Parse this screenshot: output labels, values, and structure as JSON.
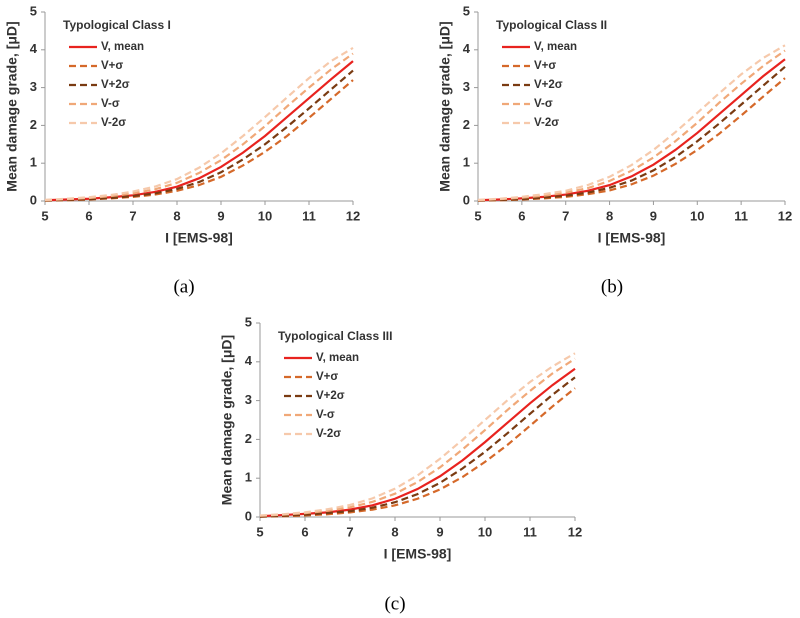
{
  "chart_data": [
    {
      "type": "line",
      "title": "Typological Class I",
      "caption": "(a)",
      "xlabel": "I [EMS-98]",
      "ylabel": "Mean damage grade, [μD]",
      "x": [
        5,
        5.5,
        6,
        6.5,
        7,
        7.5,
        8,
        8.5,
        9,
        9.5,
        10,
        10.5,
        11,
        11.5,
        12
      ],
      "xlim": [
        5,
        12
      ],
      "ylim": [
        0,
        5
      ],
      "xticks": [
        5,
        6,
        7,
        8,
        9,
        10,
        11,
        12
      ],
      "yticks": [
        0,
        1,
        2,
        3,
        4,
        5
      ],
      "series": [
        {
          "name": "V, mean",
          "color": "#e8231f",
          "dash": false,
          "values": [
            0.02,
            0.04,
            0.06,
            0.1,
            0.15,
            0.24,
            0.38,
            0.6,
            0.9,
            1.28,
            1.72,
            2.22,
            2.72,
            3.22,
            3.7
          ]
        },
        {
          "name": "V+σ",
          "color": "#d5692a",
          "dash": true,
          "values": [
            0.01,
            0.02,
            0.04,
            0.07,
            0.11,
            0.17,
            0.27,
            0.42,
            0.64,
            0.94,
            1.3,
            1.72,
            2.2,
            2.7,
            3.2
          ]
        },
        {
          "name": "V+2σ",
          "color": "#7a3b12",
          "dash": true,
          "values": [
            0.01,
            0.03,
            0.05,
            0.08,
            0.13,
            0.2,
            0.32,
            0.5,
            0.76,
            1.1,
            1.5,
            1.96,
            2.45,
            2.95,
            3.45
          ]
        },
        {
          "name": "V-σ",
          "color": "#f0a878",
          "dash": true,
          "values": [
            0.02,
            0.05,
            0.08,
            0.13,
            0.2,
            0.31,
            0.48,
            0.74,
            1.08,
            1.5,
            1.98,
            2.5,
            3.0,
            3.48,
            3.9
          ]
        },
        {
          "name": "V-2σ",
          "color": "#f6c9ab",
          "dash": true,
          "values": [
            0.03,
            0.06,
            0.1,
            0.16,
            0.25,
            0.38,
            0.58,
            0.88,
            1.26,
            1.72,
            2.22,
            2.74,
            3.25,
            3.7,
            4.05
          ]
        }
      ]
    },
    {
      "type": "line",
      "title": "Typological Class II",
      "caption": "(b)",
      "xlabel": "I [EMS-98]",
      "ylabel": "Mean damage grade, [μD]",
      "x": [
        5,
        5.5,
        6,
        6.5,
        7,
        7.5,
        8,
        8.5,
        9,
        9.5,
        10,
        10.5,
        11,
        11.5,
        12
      ],
      "xlim": [
        5,
        12
      ],
      "ylim": [
        0,
        5
      ],
      "xticks": [
        5,
        6,
        7,
        8,
        9,
        10,
        11,
        12
      ],
      "yticks": [
        0,
        1,
        2,
        3,
        4,
        5
      ],
      "series": [
        {
          "name": "V, mean",
          "color": "#e8231f",
          "dash": false,
          "values": [
            0.02,
            0.04,
            0.07,
            0.11,
            0.17,
            0.27,
            0.42,
            0.65,
            0.96,
            1.35,
            1.8,
            2.3,
            2.8,
            3.3,
            3.75
          ]
        },
        {
          "name": "V+σ",
          "color": "#d5692a",
          "dash": true,
          "values": [
            0.01,
            0.02,
            0.04,
            0.07,
            0.11,
            0.18,
            0.28,
            0.44,
            0.67,
            0.98,
            1.35,
            1.78,
            2.26,
            2.76,
            3.25
          ]
        },
        {
          "name": "V+2σ",
          "color": "#7a3b12",
          "dash": true,
          "values": [
            0.01,
            0.03,
            0.05,
            0.09,
            0.14,
            0.22,
            0.35,
            0.54,
            0.81,
            1.16,
            1.58,
            2.05,
            2.55,
            3.05,
            3.55
          ]
        },
        {
          "name": "V-σ",
          "color": "#f0a878",
          "dash": true,
          "values": [
            0.02,
            0.05,
            0.09,
            0.14,
            0.22,
            0.34,
            0.53,
            0.8,
            1.15,
            1.58,
            2.07,
            2.6,
            3.1,
            3.57,
            3.98
          ]
        },
        {
          "name": "V-2σ",
          "color": "#f6c9ab",
          "dash": true,
          "values": [
            0.03,
            0.06,
            0.11,
            0.18,
            0.27,
            0.42,
            0.64,
            0.95,
            1.35,
            1.82,
            2.33,
            2.85,
            3.35,
            3.78,
            4.12
          ]
        }
      ]
    },
    {
      "type": "line",
      "title": "Typological Class III",
      "caption": "(c)",
      "xlabel": "I [EMS-98]",
      "ylabel": "Mean damage grade, [μD]",
      "x": [
        5,
        5.5,
        6,
        6.5,
        7,
        7.5,
        8,
        8.5,
        9,
        9.5,
        10,
        10.5,
        11,
        11.5,
        12
      ],
      "xlim": [
        5,
        12
      ],
      "ylim": [
        0,
        5
      ],
      "xticks": [
        5,
        6,
        7,
        8,
        9,
        10,
        11,
        12
      ],
      "yticks": [
        0,
        1,
        2,
        3,
        4,
        5
      ],
      "series": [
        {
          "name": "V, mean",
          "color": "#e8231f",
          "dash": false,
          "values": [
            0.02,
            0.05,
            0.08,
            0.12,
            0.19,
            0.3,
            0.47,
            0.72,
            1.05,
            1.46,
            1.93,
            2.43,
            2.93,
            3.4,
            3.82
          ]
        },
        {
          "name": "V+σ",
          "color": "#d5692a",
          "dash": true,
          "values": [
            0.01,
            0.02,
            0.04,
            0.07,
            0.12,
            0.19,
            0.3,
            0.47,
            0.71,
            1.03,
            1.42,
            1.86,
            2.35,
            2.85,
            3.32
          ]
        },
        {
          "name": "V+2σ",
          "color": "#7a3b12",
          "dash": true,
          "values": [
            0.01,
            0.03,
            0.06,
            0.1,
            0.15,
            0.24,
            0.38,
            0.59,
            0.88,
            1.25,
            1.68,
            2.16,
            2.66,
            3.15,
            3.6
          ]
        },
        {
          "name": "V-σ",
          "color": "#f0a878",
          "dash": true,
          "values": [
            0.03,
            0.06,
            0.1,
            0.16,
            0.25,
            0.39,
            0.6,
            0.9,
            1.28,
            1.74,
            2.24,
            2.76,
            3.25,
            3.7,
            4.08
          ]
        },
        {
          "name": "V-2σ",
          "color": "#f6c9ab",
          "dash": true,
          "values": [
            0.04,
            0.07,
            0.12,
            0.2,
            0.31,
            0.48,
            0.73,
            1.07,
            1.5,
            1.99,
            2.5,
            3.01,
            3.48,
            3.88,
            4.22
          ]
        }
      ]
    }
  ]
}
